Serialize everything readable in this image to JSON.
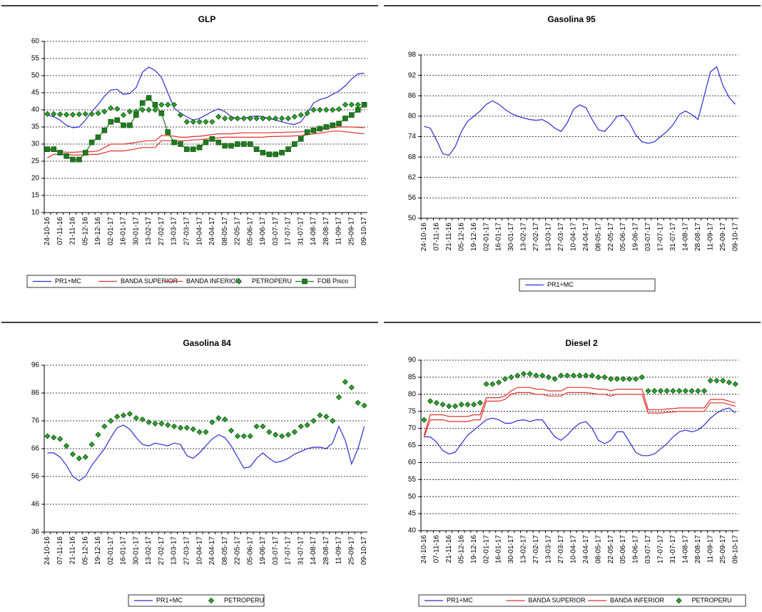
{
  "chart_data": [
    {
      "type": "line",
      "title": "GLP",
      "legend": "bottom",
      "grid": true,
      "categories": [
        "24-10-16",
        null,
        "07-11-16",
        null,
        "21-11-16",
        null,
        "05-12-16",
        null,
        "19-12-16",
        null,
        "02-01-17",
        null,
        "16-01-17",
        null,
        "30-01-17",
        null,
        "13-02-17",
        null,
        "27-02-17",
        null,
        "13-03-17",
        null,
        "27-03-17",
        null,
        "10-04-17",
        null,
        "24-04-17",
        null,
        "08-05-17",
        null,
        "22-05-17",
        null,
        "05-06-17",
        null,
        "19-06-17",
        null,
        "03-07-17",
        null,
        "17-07-17",
        null,
        "31-07-17",
        null,
        "14-08-17",
        null,
        "28-08-17",
        null,
        "11-09-17",
        null,
        "25-09-17",
        null,
        "09-10-17"
      ],
      "ylim": [
        10,
        60
      ],
      "yticks": [
        10,
        15,
        20,
        25,
        30,
        35,
        40,
        45,
        50,
        55,
        60
      ],
      "series": [
        {
          "name": "PR1+MC",
          "color": "#2b2bd6",
          "values": [
            38.5,
            38,
            37,
            35.5,
            34.8,
            35,
            37,
            39.5,
            41.5,
            44,
            45.8,
            46,
            44.5,
            44.8,
            46.5,
            51,
            52.5,
            51.5,
            49.5,
            45,
            40.5,
            39,
            38,
            37,
            37.5,
            38.5,
            39.5,
            40.3,
            39.5,
            38,
            37.5,
            37.5,
            38,
            38.2,
            38,
            37.5,
            37,
            36.5,
            36,
            35.7,
            36.5,
            39,
            42,
            43,
            43.5,
            44.5,
            45.5,
            47,
            49,
            50.5,
            50.7
          ]
        },
        {
          "name": "BANDA SUPERIOR",
          "color": "#e0302a",
          "values": [
            28.5,
            28,
            27.8,
            27.6,
            27.6,
            27.7,
            27.8,
            27.8,
            28,
            29,
            30,
            30,
            30,
            30.2,
            30.5,
            30.8,
            31,
            31,
            32.5,
            32.5,
            32.3,
            32,
            32,
            32.2,
            32.3,
            32.5,
            32.8,
            33,
            33,
            33,
            33.2,
            33.3,
            33.3,
            33.3,
            33.3,
            33.3,
            33.4,
            33.4,
            33.5,
            33.5,
            33.6,
            33.8,
            34,
            34.3,
            34.5,
            34.8,
            35,
            35,
            35,
            34.9,
            34.8
          ]
        },
        {
          "name": "BANDA INFERIOR",
          "color": "#e0302a",
          "values": [
            26,
            27,
            27,
            27,
            26.8,
            26.8,
            26.8,
            27,
            27,
            27.5,
            28,
            28,
            28,
            28.3,
            28.6,
            29,
            29,
            29,
            31,
            31,
            31,
            31,
            31,
            31.2,
            31.3,
            31.5,
            31.7,
            31.8,
            32,
            32,
            32,
            32,
            32,
            32,
            32,
            32.2,
            32.2,
            32.3,
            32.3,
            32.4,
            32.5,
            32.7,
            33,
            33.2,
            33.5,
            33.8,
            33.8,
            33.6,
            33.4,
            33.2,
            33
          ]
        },
        {
          "name": "PETROPERU",
          "color": "#2aa52a",
          "marker": "diamond",
          "line": false,
          "values": [
            38.8,
            38.8,
            38.7,
            38.6,
            38.6,
            38.7,
            38.8,
            38.8,
            39,
            39.5,
            40.5,
            40.3,
            38.5,
            39.5,
            39.5,
            40,
            40,
            40,
            41.5,
            41.5,
            41.5,
            38.5,
            36.5,
            36.5,
            36.5,
            36.5,
            36.5,
            38,
            37.5,
            37.5,
            37.5,
            37.5,
            37.5,
            37.5,
            37.5,
            37.5,
            37.5,
            37.5,
            37.5,
            38,
            38.5,
            39,
            40,
            40,
            40,
            40,
            40.2,
            41.5,
            41.5,
            41.5,
            41.5
          ]
        },
        {
          "name": "FOB Pisco",
          "color": "#1e7b1e",
          "marker": "square",
          "values": [
            28.5,
            28.5,
            27.5,
            26.5,
            25.5,
            25.5,
            27.5,
            30.5,
            32,
            34,
            36.5,
            37,
            35.5,
            35.5,
            38.5,
            42,
            43.5,
            41.5,
            39,
            33.5,
            30.5,
            30,
            28.5,
            28.5,
            29,
            30.5,
            31.5,
            30.5,
            29.5,
            29.5,
            30,
            30,
            30,
            28.5,
            27.5,
            27,
            27,
            27.5,
            28.5,
            30,
            31.5,
            33.5,
            34,
            34.5,
            35,
            35.5,
            36,
            37.5,
            38.5,
            40,
            41.5
          ]
        }
      ]
    },
    {
      "type": "line",
      "title": "Gasolina 95",
      "legend": "bottom",
      "grid": true,
      "categories": [
        "24-10-16",
        null,
        "07-11-16",
        null,
        "21-11-16",
        null,
        "05-12-16",
        null,
        "19-12-16",
        null,
        "02-01-17",
        null,
        "16-01-17",
        null,
        "30-01-17",
        null,
        "13-02-17",
        null,
        "27-02-17",
        null,
        "13-03-17",
        null,
        "27-03-17",
        null,
        "10-04-17",
        null,
        "24-04-17",
        null,
        "08-05-17",
        null,
        "22-05-17",
        null,
        "05-06-17",
        null,
        "19-06-17",
        null,
        "03-07-17",
        null,
        "17-07-17",
        null,
        "31-07-17",
        null,
        "14-08-17",
        null,
        "28-08-17",
        null,
        "11-09-17",
        null,
        "25-09-17",
        null,
        "09-10-17"
      ],
      "ylim": [
        50,
        98
      ],
      "yticks": [
        50,
        56,
        62,
        68,
        74,
        80,
        86,
        92,
        98
      ],
      "series": [
        {
          "name": "PR1+MC",
          "color": "#2b2bd6",
          "values": [
            77,
            76.5,
            73,
            69,
            68.5,
            71,
            75.5,
            78.5,
            80,
            81.5,
            83.5,
            84.5,
            83.5,
            82,
            80.8,
            80,
            79.5,
            79,
            78.8,
            79,
            78,
            76.5,
            75.5,
            78,
            82,
            83.3,
            82.5,
            79,
            76,
            75.5,
            77.5,
            80,
            80.3,
            78,
            74.5,
            72.5,
            72,
            72.5,
            74,
            75.5,
            77.5,
            80.5,
            81.5,
            80.5,
            79,
            86,
            93,
            94.5,
            89,
            85.5,
            83.5
          ]
        }
      ]
    },
    {
      "type": "line",
      "title": "Gasolina 84",
      "legend": "bottom",
      "grid": true,
      "categories": [
        "24-10-16",
        null,
        "07-11-16",
        null,
        "21-11-16",
        null,
        "05-12-16",
        null,
        "19-12-16",
        null,
        "02-01-17",
        null,
        "16-01-17",
        null,
        "30-01-17",
        null,
        "13-02-17",
        null,
        "27-02-17",
        null,
        "13-03-17",
        null,
        "27-03-17",
        null,
        "10-04-17",
        null,
        "24-04-17",
        null,
        "08-05-17",
        null,
        "22-05-17",
        null,
        "05-06-17",
        null,
        "19-06-17",
        null,
        "03-07-17",
        null,
        "17-07-17",
        null,
        "31-07-17",
        null,
        "14-08-17",
        null,
        "28-08-17",
        null,
        "11-09-17",
        null,
        "25-09-17",
        null,
        "09-10-17"
      ],
      "ylim": [
        36,
        96
      ],
      "yticks": [
        36,
        46,
        56,
        66,
        76,
        86,
        96
      ],
      "series": [
        {
          "name": "PR1+MC",
          "color": "#2b2bd6",
          "values": [
            64.5,
            64.5,
            63,
            60,
            56,
            54.5,
            56,
            60,
            63,
            66,
            70,
            73.5,
            74.5,
            73,
            70,
            67.5,
            67,
            68,
            67.5,
            67,
            68,
            67.5,
            63.5,
            62.5,
            64.5,
            67,
            69.5,
            71,
            70,
            67,
            63,
            59,
            59.5,
            62.5,
            64.5,
            62.5,
            61,
            61.5,
            62.5,
            64,
            65,
            66,
            66.5,
            66.5,
            66,
            68,
            74,
            69,
            60.5,
            66,
            74
          ]
        },
        {
          "name": "PETROPERU",
          "color": "#2aa52a",
          "marker": "diamond",
          "line": false,
          "values": [
            70.5,
            70,
            69.5,
            67,
            64,
            62.5,
            63,
            67.5,
            71,
            74,
            76,
            77.5,
            78,
            78.5,
            77,
            76.5,
            75.5,
            75,
            75,
            74.5,
            74,
            73.5,
            73.5,
            73,
            72,
            72,
            75.5,
            77,
            76.5,
            72.5,
            70.5,
            70.5,
            70.5,
            74,
            74,
            72,
            71,
            70.5,
            71,
            72,
            74,
            74.5,
            76,
            78,
            77.5,
            76,
            84.5,
            90,
            88,
            82.5,
            81.5
          ]
        }
      ]
    },
    {
      "type": "line",
      "title": "Diesel 2",
      "legend": "bottom",
      "grid": true,
      "categories": [
        "24-10-16",
        null,
        "07-11-16",
        null,
        "21-11-16",
        null,
        "05-12-16",
        null,
        "19-12-16",
        null,
        "02-01-17",
        null,
        "16-01-17",
        null,
        "30-01-17",
        null,
        "13-02-17",
        null,
        "27-02-17",
        null,
        "13-03-17",
        null,
        "27-03-17",
        null,
        "10-04-17",
        null,
        "24-04-17",
        null,
        "08-05-17",
        null,
        "22-05-17",
        null,
        "05-06-17",
        null,
        "19-06-17",
        null,
        "03-07-17",
        null,
        "17-07-17",
        null,
        "31-07-17",
        null,
        "14-08-17",
        null,
        "28-08-17",
        null,
        "11-09-17",
        null,
        "25-09-17",
        null,
        "09-10-17"
      ],
      "ylim": [
        40,
        90
      ],
      "yticks": [
        40,
        45,
        50,
        55,
        60,
        65,
        70,
        75,
        80,
        85,
        90
      ],
      "series": [
        {
          "name": "PR1+MC",
          "color": "#2b2bd6",
          "values": [
            67.5,
            67.5,
            66,
            63.5,
            62.5,
            63,
            65.5,
            68,
            69.5,
            71,
            72.5,
            73,
            72.5,
            71.5,
            71.5,
            72.3,
            72.5,
            72,
            72.5,
            72.5,
            70,
            67.5,
            66.5,
            68,
            70,
            71.5,
            72,
            70,
            66.5,
            65.5,
            66.5,
            69,
            69,
            66,
            63,
            62,
            62,
            62.5,
            64,
            65.5,
            67.5,
            69,
            69.5,
            69,
            69.5,
            71,
            73,
            74.5,
            75.5,
            76,
            74.5
          ]
        },
        {
          "name": "BANDA SUPERIOR",
          "color": "#e0302a",
          "values": [
            68,
            74,
            74,
            74,
            73.5,
            73.5,
            73.5,
            73.5,
            74,
            74,
            79,
            79,
            79,
            79.5,
            81,
            82,
            82,
            82,
            81.5,
            81.5,
            81,
            81,
            81,
            82,
            82,
            82,
            82,
            81.8,
            81.5,
            81.5,
            81,
            81.5,
            81.5,
            81.5,
            81.5,
            81.5,
            75.5,
            75.5,
            75.5,
            75.7,
            75.8,
            76,
            76,
            76,
            76,
            76,
            78.5,
            78.5,
            78.5,
            78,
            77.5
          ]
        },
        {
          "name": "BANDA INFERIOR",
          "color": "#e0302a",
          "values": [
            67.5,
            72.5,
            72.5,
            72.5,
            72,
            72,
            72,
            72,
            72.5,
            72.5,
            78,
            78,
            78,
            78.5,
            80,
            80.5,
            80.5,
            80.5,
            80,
            80,
            79.5,
            79.5,
            79.5,
            80.5,
            80.5,
            80.5,
            80.5,
            80.3,
            80,
            80,
            79.5,
            80,
            80,
            80,
            80,
            80,
            74.5,
            74.5,
            74.5,
            74.7,
            74.8,
            75,
            75,
            75,
            75,
            75,
            77.5,
            77.5,
            77.5,
            77,
            76.5
          ]
        },
        {
          "name": "PETROPERU",
          "color": "#2aa52a",
          "marker": "diamond",
          "line": false,
          "values": [
            72.5,
            78,
            77.5,
            77,
            76.5,
            76.5,
            77,
            77,
            77,
            77.5,
            83,
            83,
            83.5,
            84.5,
            85,
            85.5,
            86,
            86,
            85.5,
            85.5,
            85,
            84.5,
            85.5,
            85.5,
            85.5,
            85.5,
            85.5,
            85.5,
            85,
            85,
            84.5,
            84.5,
            84.5,
            84.5,
            84.5,
            85,
            81,
            81,
            81,
            81,
            81,
            81,
            81,
            81,
            81,
            81,
            84,
            84,
            84,
            83.5,
            83
          ]
        }
      ]
    }
  ]
}
